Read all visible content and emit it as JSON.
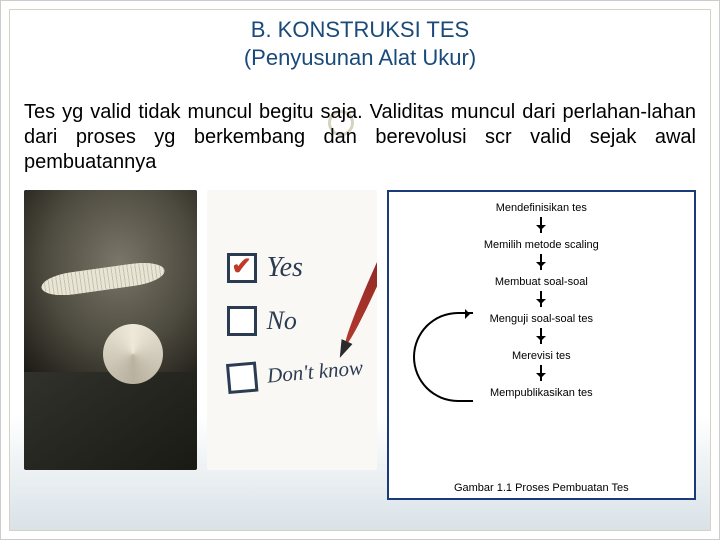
{
  "title": {
    "line1": "B. KONSTRUKSI TES",
    "line2": "(Penyusunan Alat Ukur)",
    "color": "#1a4a7a",
    "fontsize": 22
  },
  "paragraph": {
    "text": "Tes yg valid tidak muncul begitu saja. Validitas muncul dari perlahan-lahan dari proses yg berkembang dan berevolusi scr valid sejak awal pembuatannya",
    "fontsize": 20,
    "color": "#000000"
  },
  "decorative_circle": {
    "border_color": "#d6d3c0"
  },
  "background_gradient": {
    "top": "#ffffff",
    "bottom": "#d9e2e8"
  },
  "images": {
    "scale_photo": {
      "description": "bathroom-scale-with-tape-measure",
      "tape_color": "#f2efe4",
      "bg_dark": "#1a1a15"
    },
    "checklist_photo": {
      "items": [
        {
          "label": "Yes",
          "checked": true
        },
        {
          "label": "No",
          "checked": false
        },
        {
          "label": "Don't know",
          "checked": false
        }
      ],
      "box_border": "#2b3c52",
      "check_color": "#c0392b",
      "pencil_color": "#b33a2f"
    }
  },
  "flowchart": {
    "border_color": "#1a3a7a",
    "nodes": [
      "Mendefinisikan tes",
      "Memilih metode scaling",
      "Membuat soal-soal",
      "Menguji soal-soal tes",
      "Merevisi tes",
      "Mempublikasikan tes"
    ],
    "caption": "Gambar 1.1 Proses Pembuatan Tes",
    "node_fontsize": 11,
    "arrow_color": "#000000",
    "has_feedback_loop": true,
    "loop_from_index": 4,
    "loop_to_index": 2
  }
}
